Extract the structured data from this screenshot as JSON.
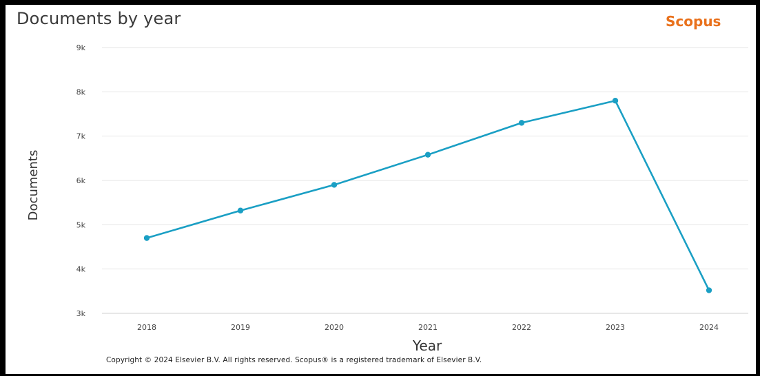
{
  "header": {
    "title": "Documents by year",
    "brand": "Scopus"
  },
  "footer": {
    "copyright": "Copyright © 2024 Elsevier B.V. All rights reserved. Scopus® is a registered trademark of Elsevier B.V."
  },
  "colors": {
    "line": "#1a9fc4",
    "grid": "#e6e6e6",
    "brand": "#e9711c"
  },
  "chart_data": {
    "type": "line",
    "title": "Documents by year",
    "xlabel": "Year",
    "ylabel": "Documents",
    "x": [
      "2018",
      "2019",
      "2020",
      "2021",
      "2022",
      "2023",
      "2024"
    ],
    "values": [
      4700,
      5320,
      5900,
      6580,
      7300,
      7800,
      3520
    ],
    "ylim": [
      3000,
      9000
    ],
    "yticks": [
      3000,
      4000,
      5000,
      6000,
      7000,
      8000,
      9000
    ],
    "ytick_labels": [
      "3k",
      "4k",
      "5k",
      "6k",
      "7k",
      "8k",
      "9k"
    ],
    "grid": "horizontal",
    "legend": "none"
  }
}
